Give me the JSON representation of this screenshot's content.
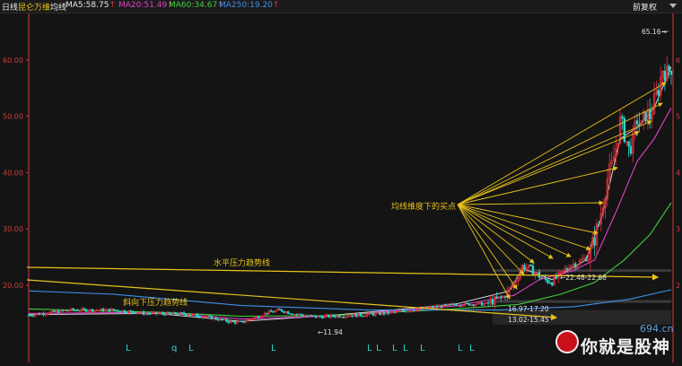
{
  "header": {
    "period": "日线",
    "stock": "昆仑万维",
    "indicator": "均线",
    "adjust": "前复权",
    "ma": [
      {
        "label": "MA5:58.75",
        "arrow": "↑",
        "color": "#e8e8e8"
      },
      {
        "label": "MA20:51.49",
        "arrow": "↑",
        "color": "#e040c8"
      },
      {
        "label": "MA60:34.67",
        "arrow": "↑",
        "color": "#3fcf3f"
      },
      {
        "label": "MA250:19.20",
        "arrow": "↑",
        "color": "#3f8fe8"
      }
    ]
  },
  "colors": {
    "up": "#e8303a",
    "down": "#27d6cf",
    "annotation": "#e8c31c",
    "axis": "#d23c3c",
    "grid": "#3a1c1c"
  },
  "chart_data": {
    "type": "candlestick",
    "ylim": [
      11,
      67
    ],
    "yticks": [
      "20.00",
      "30.00",
      "40.00",
      "50.00",
      "60.00"
    ],
    "right_ticks": [
      "2",
      "3",
      "4",
      "5",
      "6"
    ],
    "price_marks": {
      "high": "65.16",
      "low": "11.94"
    },
    "price_path": [
      [
        0,
        14.7
      ],
      [
        20,
        15.6
      ],
      [
        40,
        15.6
      ],
      [
        55,
        15.0
      ],
      [
        75,
        14.9
      ],
      [
        85,
        14.3
      ],
      [
        95,
        13.5
      ],
      [
        100,
        13.4
      ],
      [
        112,
        15.1
      ],
      [
        118,
        15.6
      ],
      [
        125,
        14.9
      ],
      [
        135,
        14.4
      ],
      [
        148,
        14.6
      ],
      [
        160,
        14.8
      ],
      [
        172,
        15.2
      ],
      [
        180,
        15.6
      ],
      [
        200,
        16.6
      ],
      [
        215,
        16.7
      ],
      [
        218,
        17.2
      ],
      [
        223,
        17.9
      ],
      [
        226,
        19.3
      ],
      [
        229,
        21.0
      ],
      [
        232,
        23.4
      ],
      [
        235,
        23.0
      ],
      [
        238,
        22.3
      ],
      [
        242,
        21.0
      ],
      [
        246,
        20.7
      ],
      [
        250,
        21.8
      ],
      [
        254,
        23.6
      ],
      [
        258,
        24.0
      ],
      [
        261,
        24.6
      ],
      [
        264,
        25.8
      ],
      [
        266,
        28.5
      ],
      [
        268,
        31.0
      ],
      [
        270,
        35.0
      ],
      [
        272,
        39.0
      ],
      [
        274,
        41.0
      ],
      [
        276,
        44.5
      ],
      [
        278,
        49.0
      ],
      [
        280,
        47.0
      ],
      [
        282,
        44.0
      ],
      [
        284,
        46.0
      ],
      [
        286,
        49.5
      ],
      [
        288,
        48.0
      ],
      [
        290,
        50.5
      ],
      [
        292,
        50.0
      ],
      [
        294,
        52.5
      ],
      [
        296,
        55.0
      ],
      [
        298,
        58.5
      ],
      [
        300,
        57.5
      ],
      [
        302,
        58.8
      ]
    ],
    "moving_averages": [
      {
        "name": "MA5",
        "color": "#e8e8e8",
        "points": [
          [
            0,
            14.8
          ],
          [
            60,
            15.0
          ],
          [
            100,
            13.6
          ],
          [
            140,
            14.6
          ],
          [
            200,
            16.6
          ],
          [
            226,
            19.0
          ],
          [
            232,
            23.0
          ],
          [
            246,
            21.0
          ],
          [
            262,
            24.5
          ],
          [
            270,
            33.0
          ],
          [
            278,
            46.0
          ],
          [
            286,
            48.0
          ],
          [
            294,
            51.5
          ],
          [
            302,
            58.75
          ]
        ]
      },
      {
        "name": "MA20",
        "color": "#e040c8",
        "points": [
          [
            0,
            15.0
          ],
          [
            60,
            15.2
          ],
          [
            100,
            14.0
          ],
          [
            140,
            14.5
          ],
          [
            200,
            16.3
          ],
          [
            228,
            18.2
          ],
          [
            240,
            21.0
          ],
          [
            256,
            22.6
          ],
          [
            266,
            24.5
          ],
          [
            276,
            33.0
          ],
          [
            286,
            42.0
          ],
          [
            294,
            46.0
          ],
          [
            302,
            51.49
          ]
        ]
      },
      {
        "name": "MA60",
        "color": "#3fcf3f",
        "points": [
          [
            0,
            15.8
          ],
          [
            60,
            15.2
          ],
          [
            100,
            14.5
          ],
          [
            140,
            14.6
          ],
          [
            200,
            15.8
          ],
          [
            230,
            16.6
          ],
          [
            250,
            18.4
          ],
          [
            266,
            20.5
          ],
          [
            280,
            24.5
          ],
          [
            292,
            29.0
          ],
          [
            302,
            34.67
          ]
        ]
      },
      {
        "name": "MA250",
        "color": "#3f8fe8",
        "points": [
          [
            0,
            19.0
          ],
          [
            40,
            18.4
          ],
          [
            100,
            16.4
          ],
          [
            160,
            15.6
          ],
          [
            220,
            15.6
          ],
          [
            256,
            16.2
          ],
          [
            282,
            17.5
          ],
          [
            302,
            19.2
          ]
        ]
      }
    ],
    "annotations": {
      "buy_point_label": "均线维度下的买点",
      "horizontal_trendline_label": "水平压力趋势线",
      "descending_trendline_label": "斜向下压力趋势线",
      "zone_upper_label": "22.48-22.68",
      "zone_mid_label": "16.97-17.20",
      "zone_lower_label": "13.02-15.45"
    },
    "bottom_markers": [
      "L",
      "q",
      "L",
      "L",
      "L",
      "L",
      "L",
      "L",
      "L",
      "L",
      "L"
    ],
    "watermark": {
      "text": "你就是股神",
      "site": "694.cn"
    }
  }
}
